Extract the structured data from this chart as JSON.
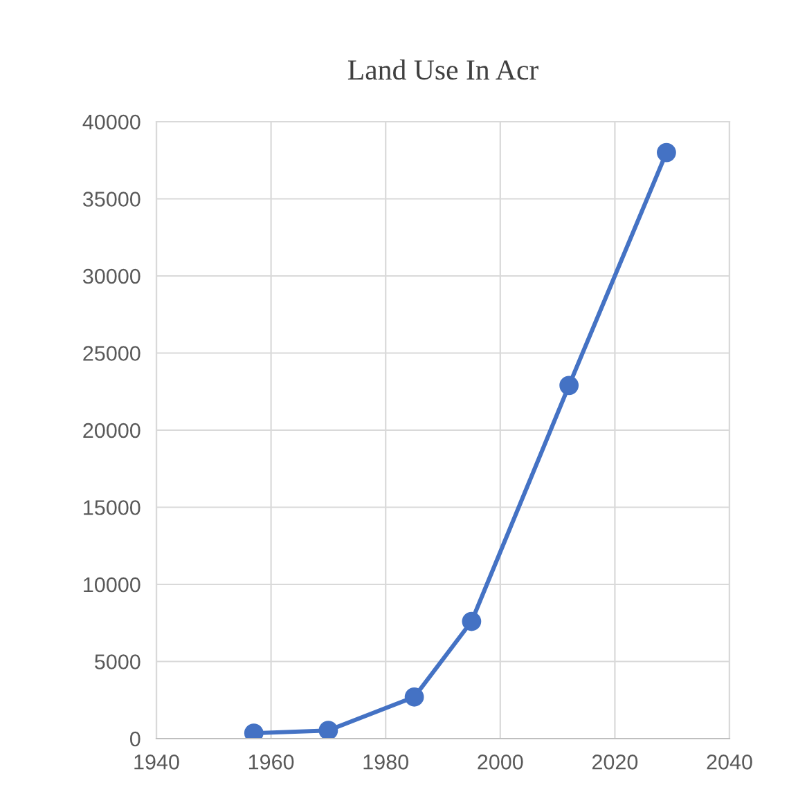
{
  "chart_data": {
    "type": "line",
    "title": "Land Use In Acr",
    "x": [
      1957,
      1970,
      1985,
      1995,
      2012,
      2029
    ],
    "series": [
      {
        "color": "#4472c4",
        "values": [
          350,
          530,
          2700,
          7600,
          22900,
          38000
        ]
      }
    ],
    "xlim": [
      1940,
      2040
    ],
    "xticks": [
      1940,
      1960,
      1980,
      2000,
      2020,
      2040
    ],
    "ylim": [
      0,
      40000
    ],
    "yticks": [
      0,
      5000,
      10000,
      15000,
      20000,
      25000,
      30000,
      35000,
      40000
    ],
    "grid": true,
    "marker": "circle",
    "line_style": "solid"
  }
}
